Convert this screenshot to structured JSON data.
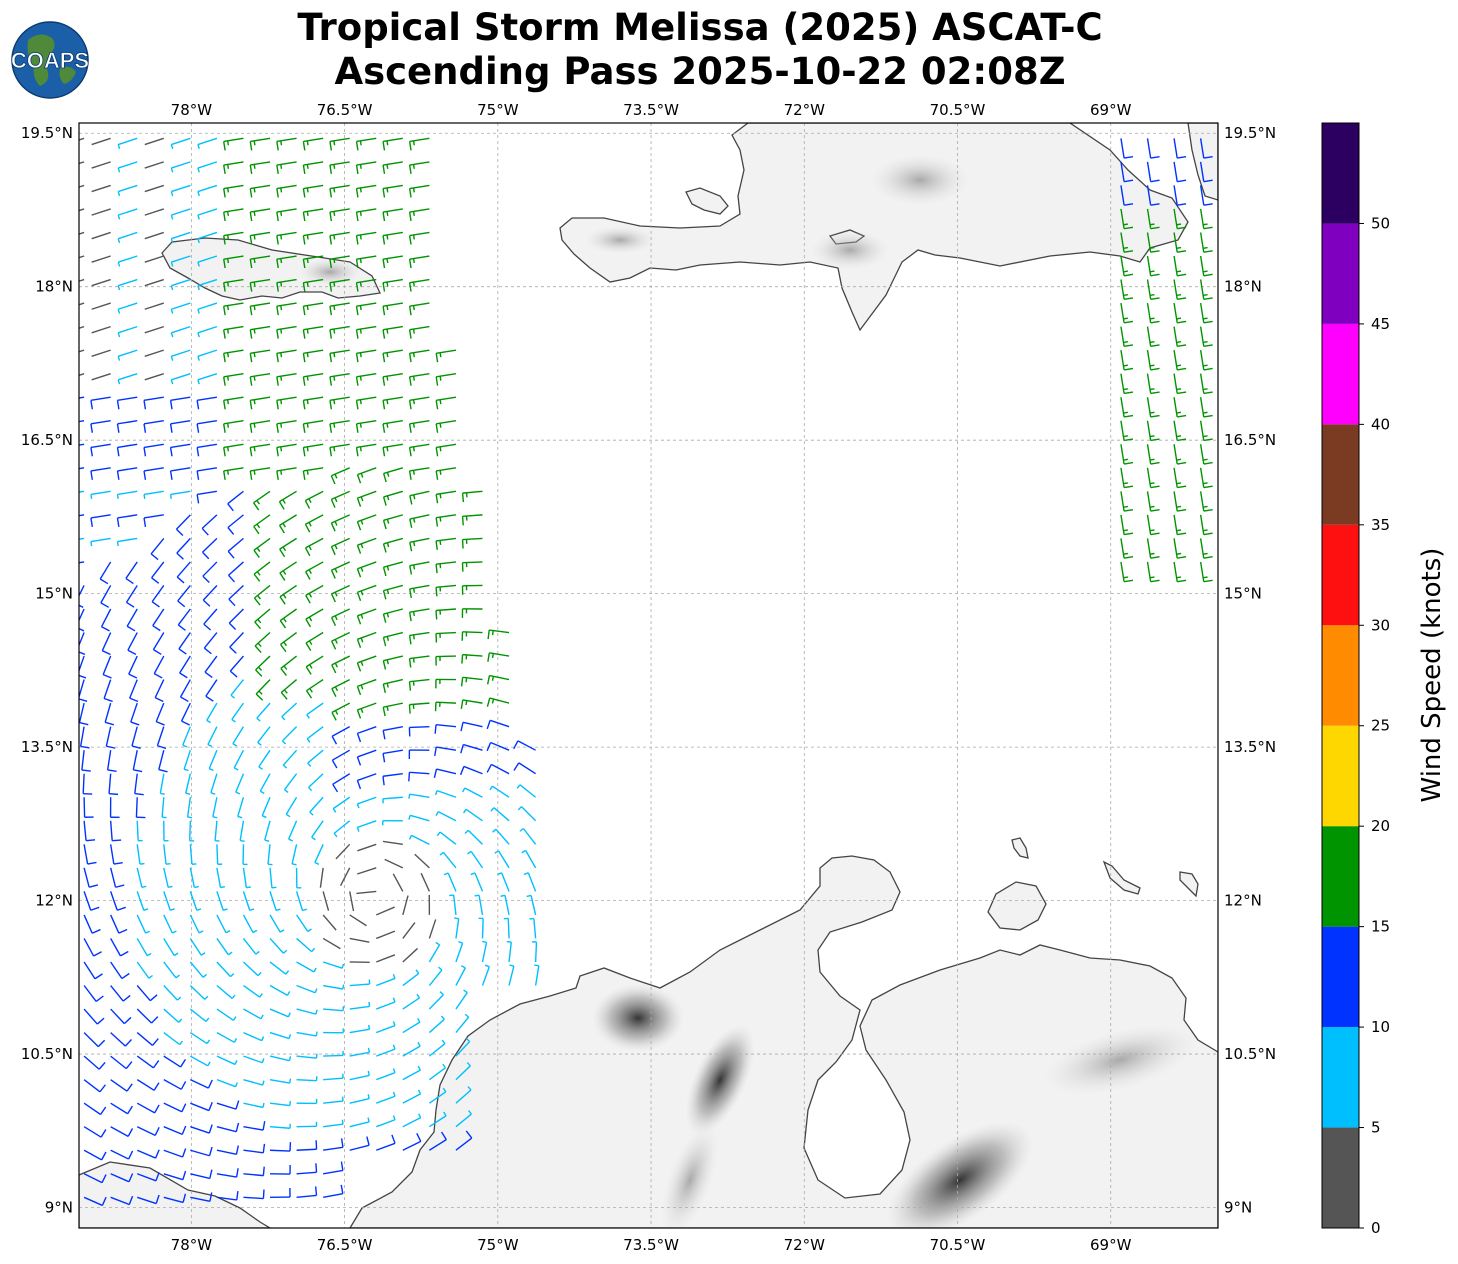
{
  "title": {
    "line1": "Tropical Storm Melissa (2025) ASCAT-C",
    "line2": "Ascending Pass 2025-10-22 02:08Z"
  },
  "logo": {
    "text": "COAPS",
    "icon": "globe-icon"
  },
  "map": {
    "lon_range": [
      -79.1,
      -67.95
    ],
    "lat_range": [
      8.8,
      19.6
    ],
    "lon_ticks": [
      {
        "value": -78,
        "label": "78°W"
      },
      {
        "value": -76.5,
        "label": "76.5°W"
      },
      {
        "value": -75,
        "label": "75°W"
      },
      {
        "value": -73.5,
        "label": "73.5°W"
      },
      {
        "value": -72,
        "label": "72°W"
      },
      {
        "value": -70.5,
        "label": "70.5°W"
      },
      {
        "value": -69,
        "label": "69°W"
      }
    ],
    "lat_ticks": [
      {
        "value": 19.5,
        "label": "19.5°N"
      },
      {
        "value": 18,
        "label": "18°N"
      },
      {
        "value": 16.5,
        "label": "16.5°N"
      },
      {
        "value": 15,
        "label": "15°N"
      },
      {
        "value": 13.5,
        "label": "13.5°N"
      },
      {
        "value": 12,
        "label": "12°N"
      },
      {
        "value": 10.5,
        "label": "10.5°N"
      },
      {
        "value": 9,
        "label": "9°N"
      }
    ],
    "gridlines": true,
    "land_color": "#ffffff",
    "coast_color": "#444444"
  },
  "colorbar": {
    "title": "Wind Speed (knots)",
    "bins": [
      {
        "min": 0,
        "max": 5,
        "color": "#555555"
      },
      {
        "min": 5,
        "max": 10,
        "color": "#00bfff"
      },
      {
        "min": 10,
        "max": 15,
        "color": "#0033ff"
      },
      {
        "min": 15,
        "max": 20,
        "color": "#009400"
      },
      {
        "min": 20,
        "max": 25,
        "color": "#ffd700"
      },
      {
        "min": 25,
        "max": 30,
        "color": "#ff8c00"
      },
      {
        "min": 30,
        "max": 35,
        "color": "#ff1010"
      },
      {
        "min": 35,
        "max": 40,
        "color": "#7b3b22"
      },
      {
        "min": 40,
        "max": 45,
        "color": "#ff00ff"
      },
      {
        "min": 45,
        "max": 50,
        "color": "#8000c0"
      },
      {
        "min": 50,
        "max": 55,
        "color": "#2b0060"
      }
    ],
    "tick_labels": [
      "0",
      "5",
      "10",
      "15",
      "20",
      "25",
      "30",
      "35",
      "40",
      "45",
      "50"
    ]
  }
}
